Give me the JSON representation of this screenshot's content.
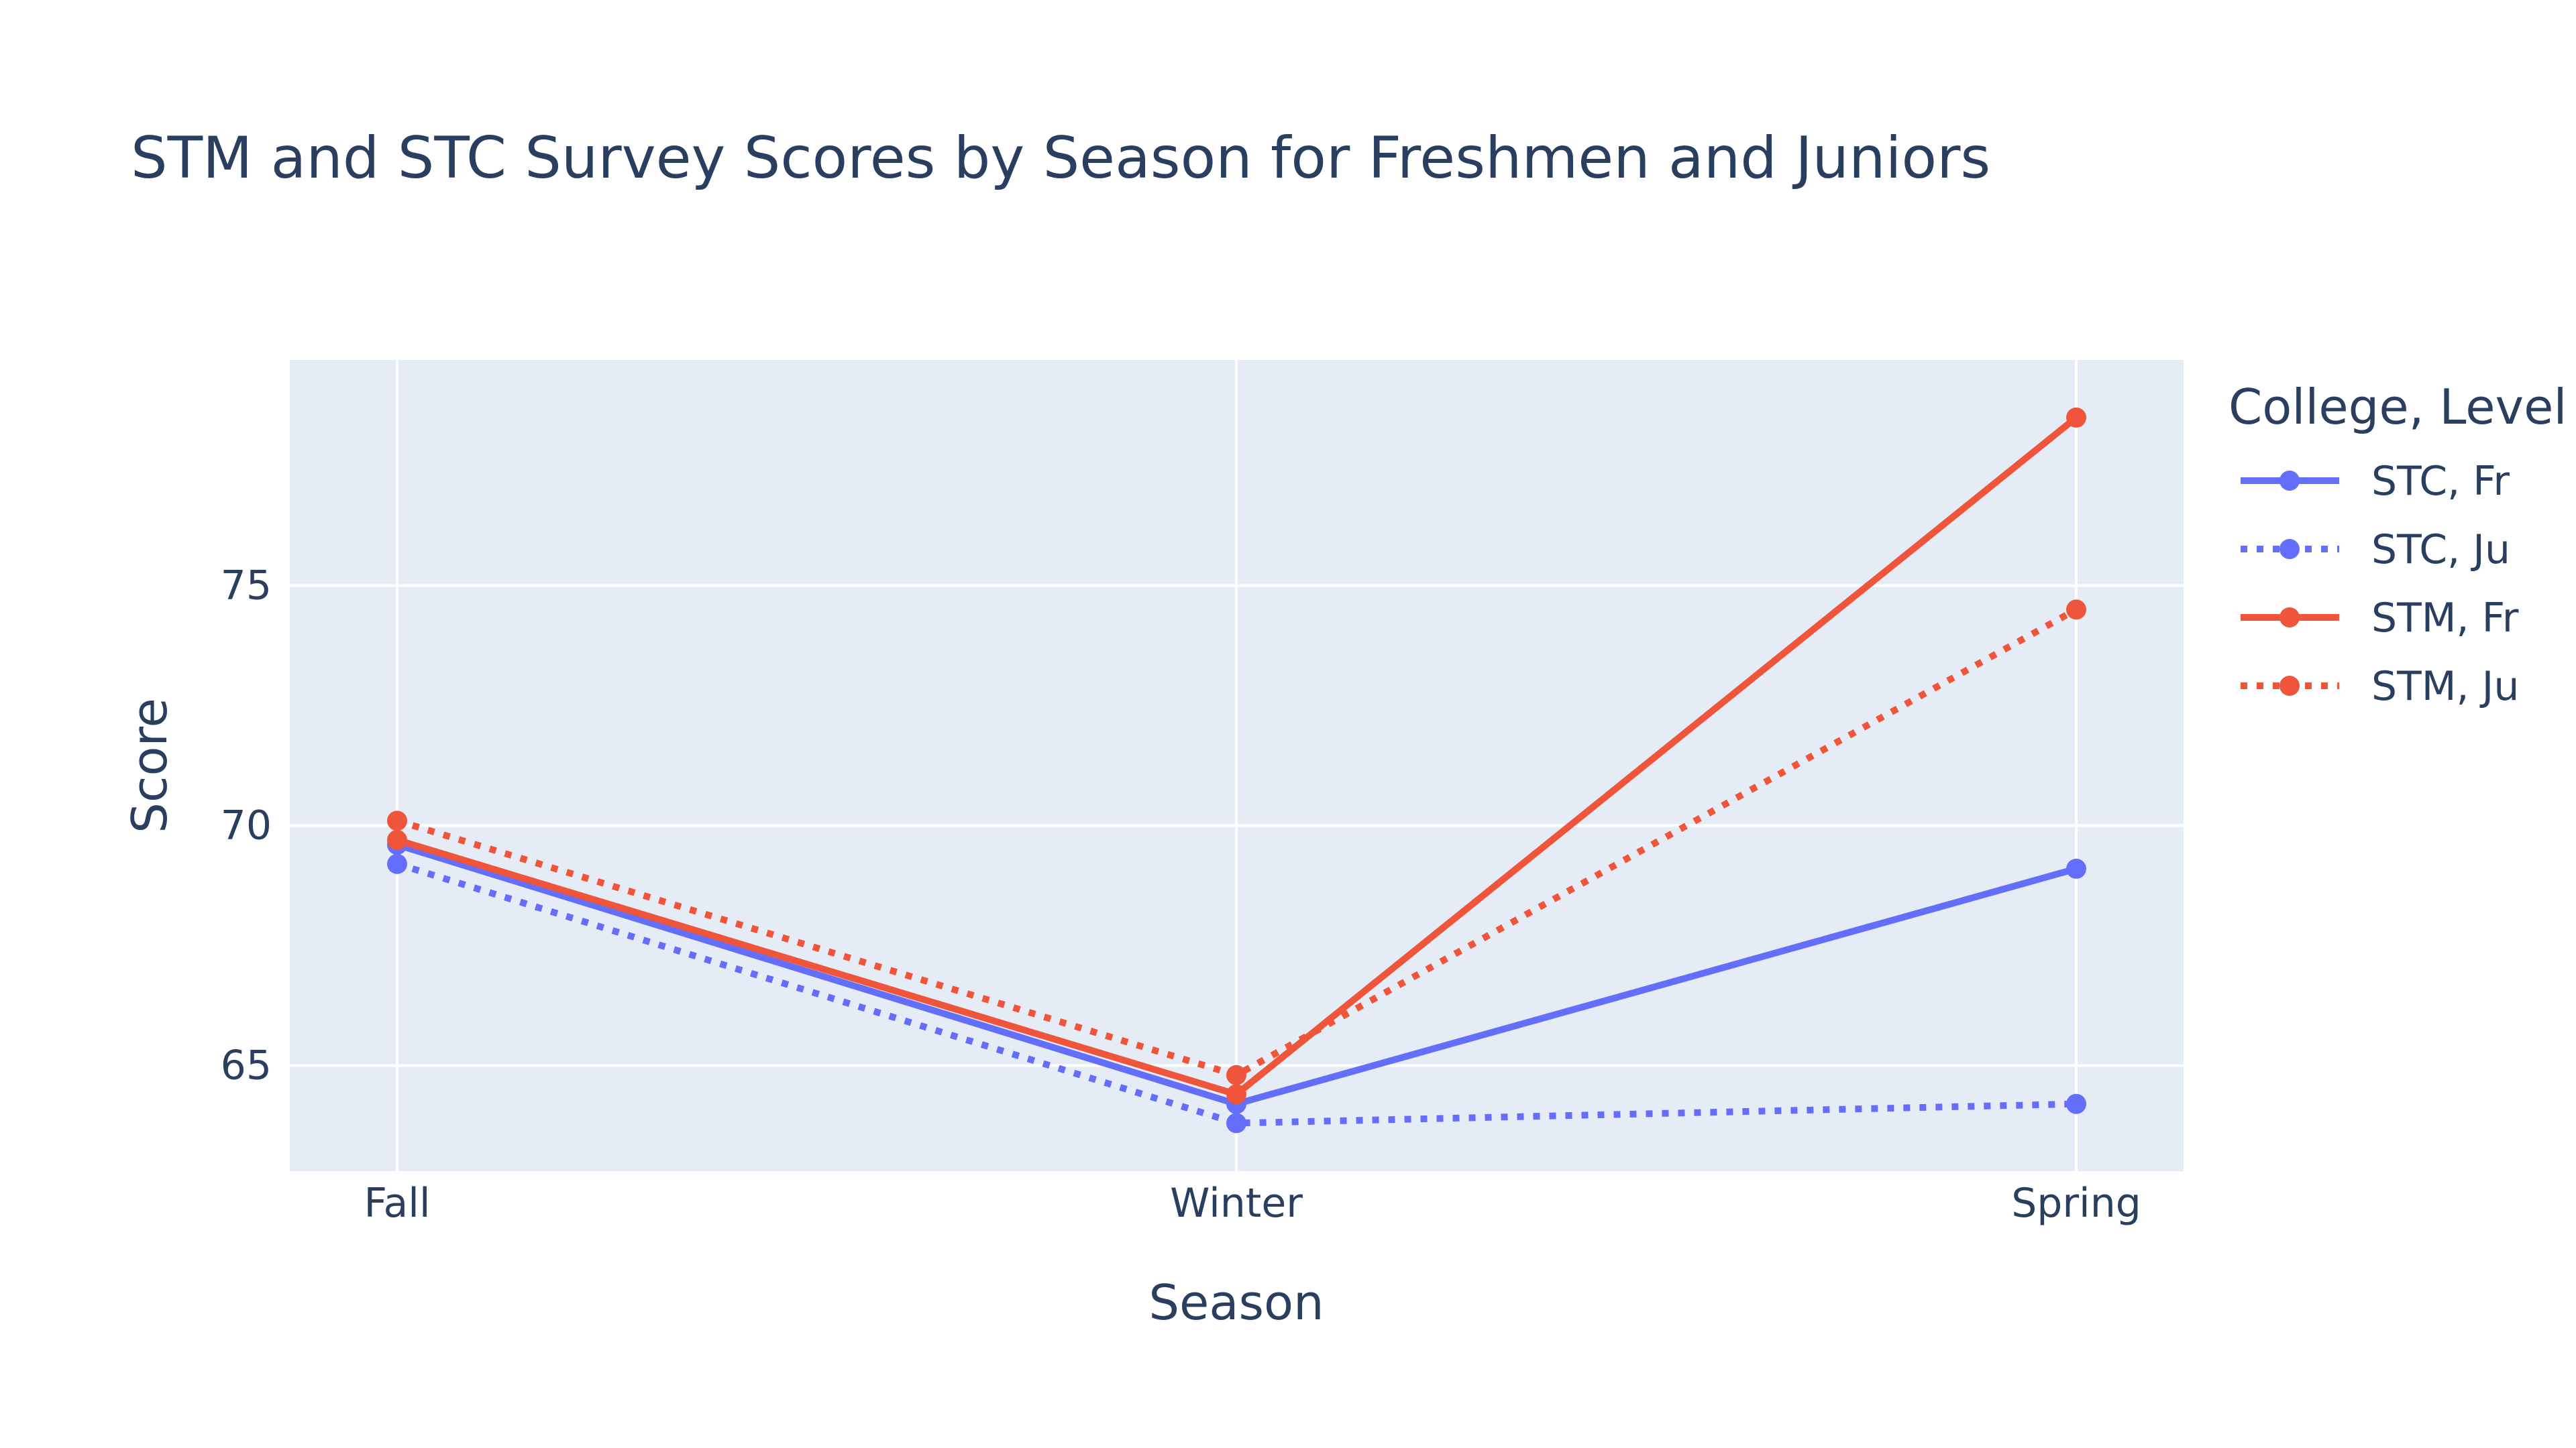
{
  "chart_data": {
    "type": "line",
    "title": "STM and STC Survey Scores by Season for Freshmen and Juniors",
    "xlabel": "Season",
    "ylabel": "Score",
    "categories": [
      "Fall",
      "Winter",
      "Spring"
    ],
    "yticks": [
      65,
      70,
      75
    ],
    "ylim": [
      62.8,
      79.7
    ],
    "grid": true,
    "legend": {
      "title": "College, Level",
      "position": "right"
    },
    "series": [
      {
        "name": "STC, Fr",
        "values": [
          69.6,
          64.2,
          69.1
        ],
        "color": "#636efa",
        "dash": "solid"
      },
      {
        "name": "STC, Ju",
        "values": [
          69.2,
          63.8,
          64.2
        ],
        "color": "#636efa",
        "dash": "dot"
      },
      {
        "name": "STM, Fr",
        "values": [
          69.7,
          64.4,
          78.5
        ],
        "color": "#ef553b",
        "dash": "solid"
      },
      {
        "name": "STM, Ju",
        "values": [
          70.1,
          64.8,
          74.5
        ],
        "color": "#ef553b",
        "dash": "dot"
      }
    ]
  },
  "colors": {
    "plot_background": "#e5ecf6",
    "grid": "#ffffff",
    "text": "#2a3f5f"
  }
}
